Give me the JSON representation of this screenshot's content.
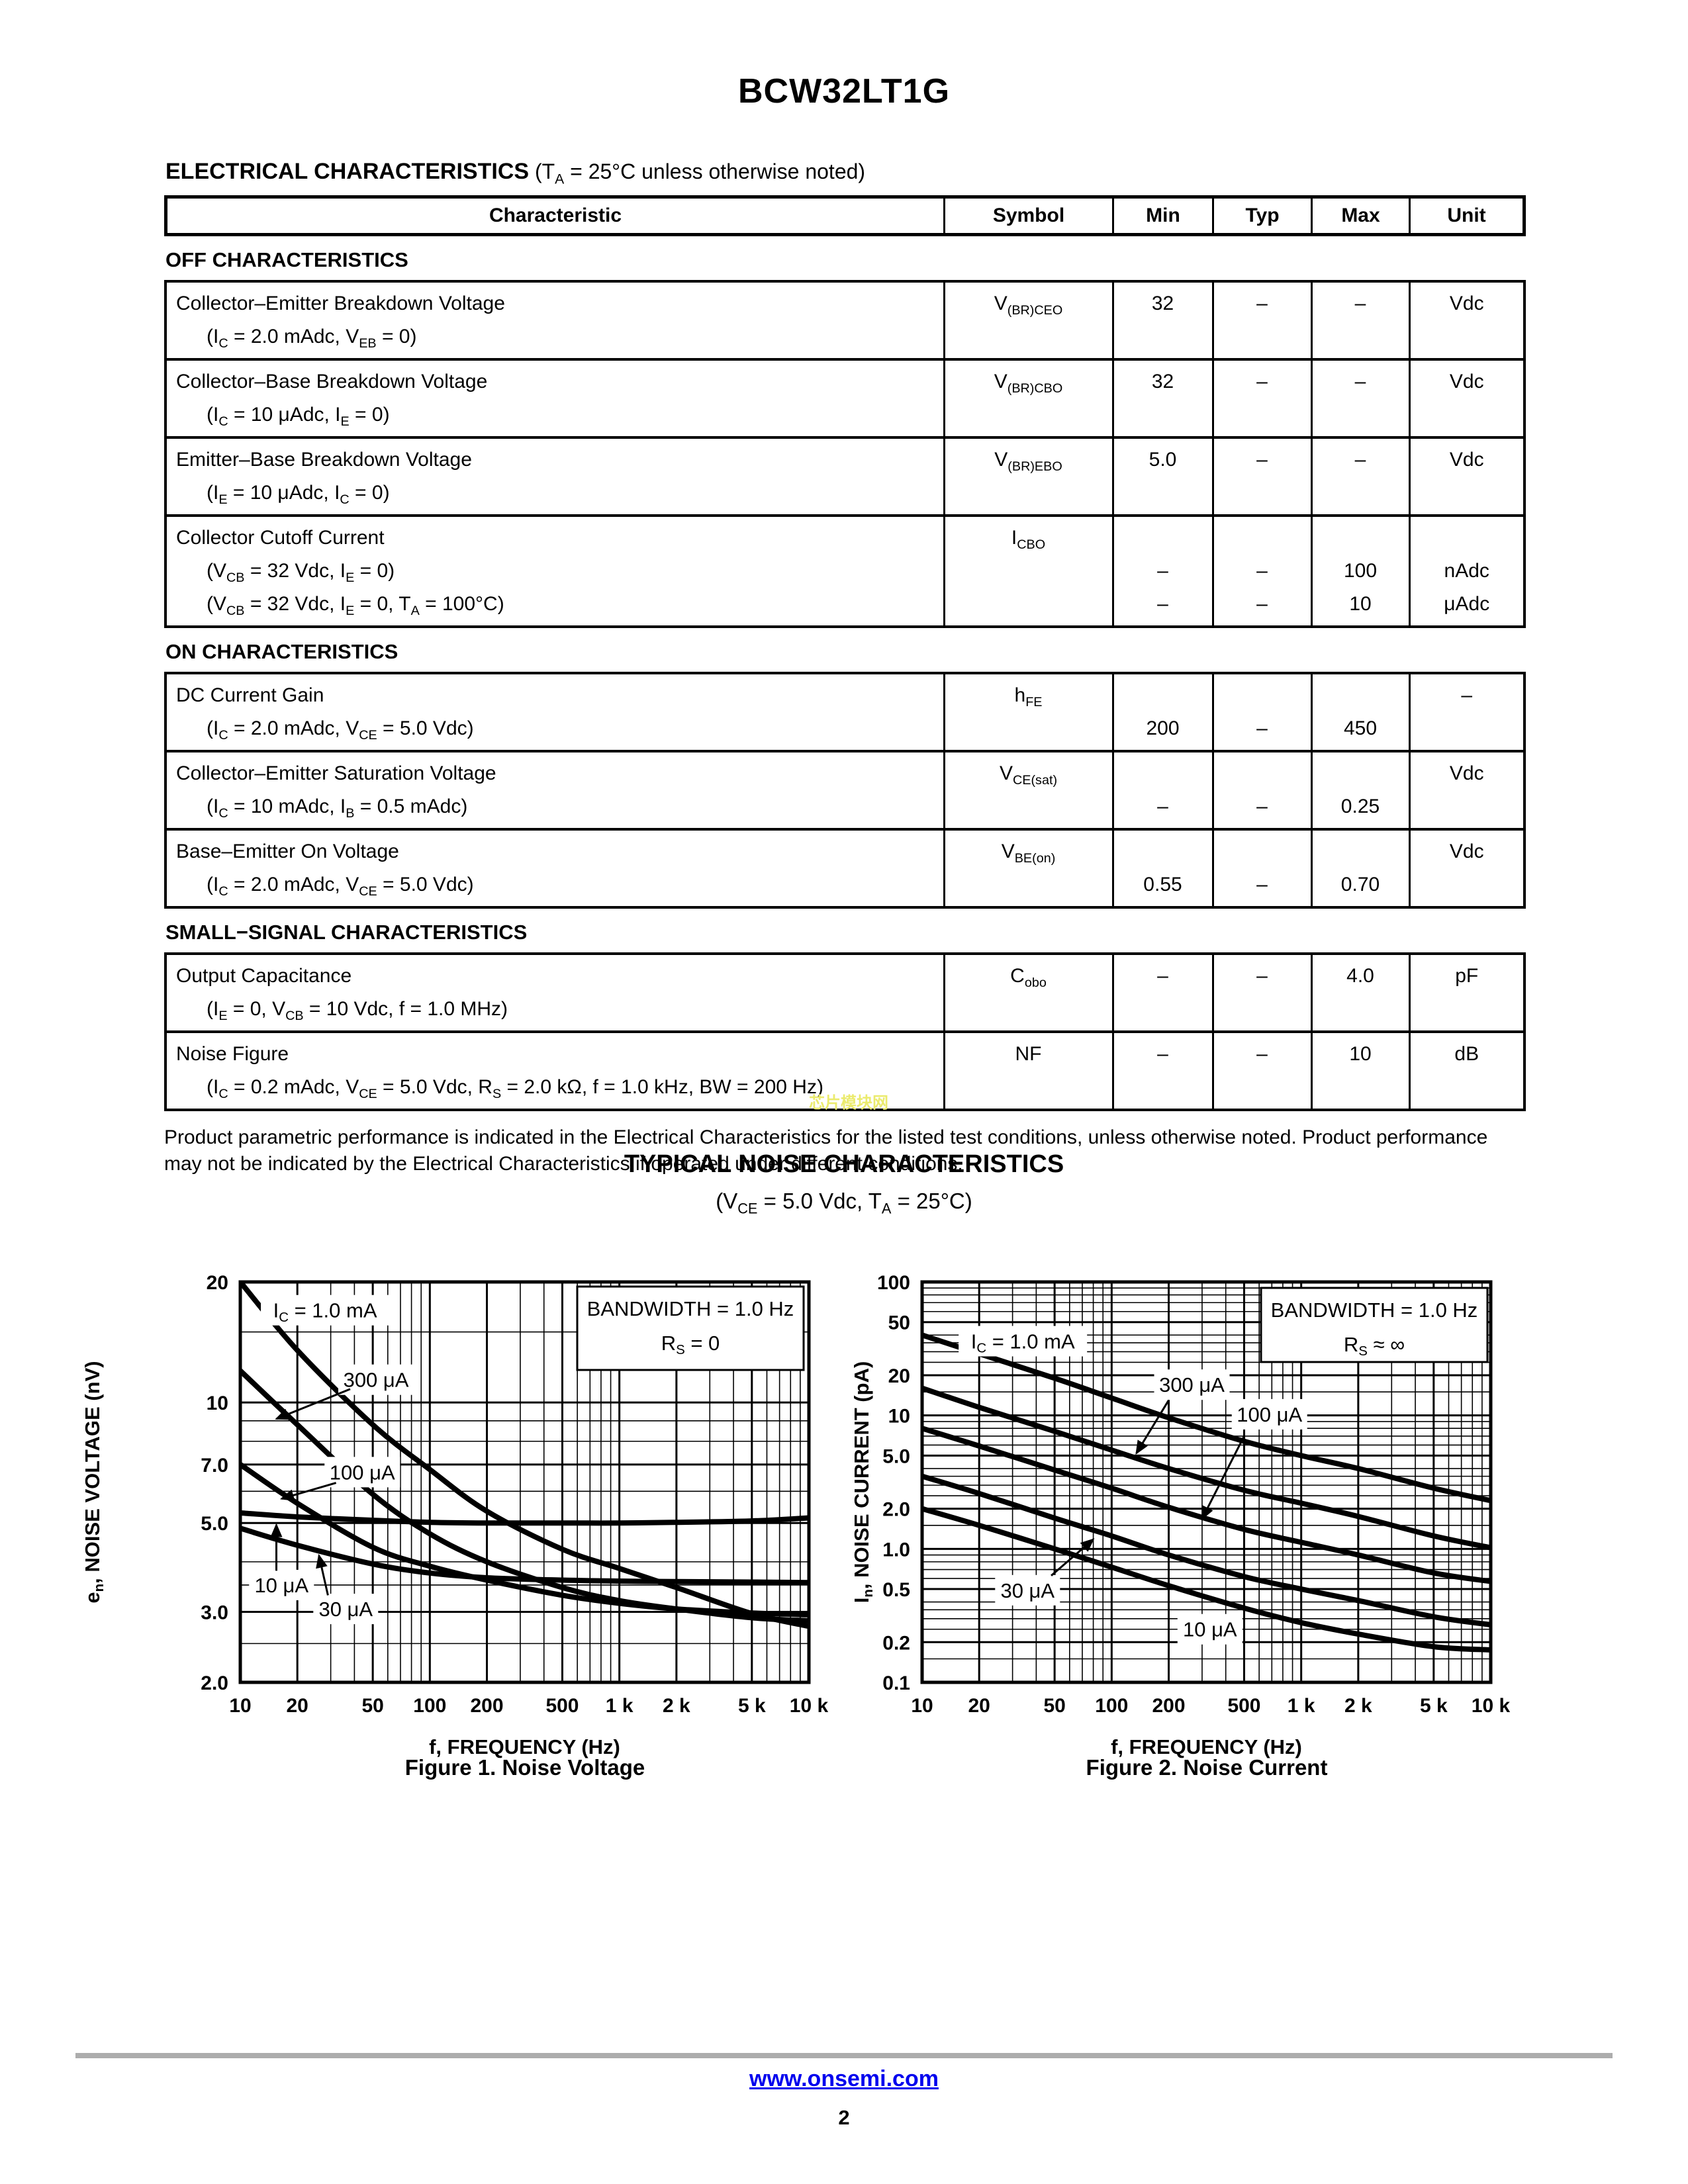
{
  "page": {
    "title": "BCW32LT1G",
    "watermark": "芯片模块网",
    "footer_link": "www.onsemi.com",
    "footer_page": "2"
  },
  "colors": {
    "text": "#000000",
    "link_blue": "#0000ee",
    "footer_bar_gray": "#adadad",
    "watermark_yellow": "#ebeb6e",
    "curve_black": "#000000"
  },
  "electrical": {
    "heading_bold": "ELECTRICAL CHARACTERISTICS",
    "heading_note": " (T{A} = 25°C unless otherwise noted)",
    "columns": [
      "Characteristic",
      "Symbol",
      "Min",
      "Typ",
      "Max",
      "Unit"
    ],
    "sections": [
      {
        "name": "OFF CHARACTERISTICS",
        "rows": [
          {
            "char": [
              "Collector–Emitter Breakdown Voltage",
              "(I{C} = 2.0 mAdc, V{EB} = 0)"
            ],
            "symbol": "V{(BR)CEO}",
            "min": [
              "32"
            ],
            "typ": [
              "–"
            ],
            "max": [
              "–"
            ],
            "unit": [
              "Vdc"
            ]
          },
          {
            "char": [
              "Collector–Base Breakdown Voltage",
              "(I{C} = 10 μAdc, I{E} = 0)"
            ],
            "symbol": "V{(BR)CBO}",
            "min": [
              "32"
            ],
            "typ": [
              "–"
            ],
            "max": [
              "–"
            ],
            "unit": [
              "Vdc"
            ]
          },
          {
            "char": [
              "Emitter–Base Breakdown Voltage",
              "(I{E} = 10 μAdc, I{C} = 0)"
            ],
            "symbol": "V{(BR)EBO}",
            "min": [
              "5.0"
            ],
            "typ": [
              "–"
            ],
            "max": [
              "–"
            ],
            "unit": [
              "Vdc"
            ]
          },
          {
            "char": [
              "Collector Cutoff Current",
              "(V{CB} = 32 Vdc, I{E} = 0)",
              "(V{CB} = 32 Vdc, I{E} = 0, T{A} = 100°C)"
            ],
            "symbol": "I{CBO}",
            "min": [
              "",
              "–",
              "–"
            ],
            "typ": [
              "",
              "–",
              "–"
            ],
            "max": [
              "",
              "100",
              "10"
            ],
            "unit": [
              "",
              "nAdc",
              "μAdc"
            ]
          }
        ]
      },
      {
        "name": "ON CHARACTERISTICS",
        "rows": [
          {
            "char": [
              "DC Current Gain",
              "(I{C} = 2.0 mAdc, V{CE} = 5.0 Vdc)"
            ],
            "symbol": "h{FE}",
            "min": [
              "",
              "200"
            ],
            "typ": [
              "",
              "–"
            ],
            "max": [
              "",
              "450"
            ],
            "unit": [
              "–"
            ]
          },
          {
            "char": [
              "Collector–Emitter Saturation Voltage",
              "(I{C} = 10 mAdc, I{B} = 0.5 mAdc)"
            ],
            "symbol": "V{CE(sat)}",
            "min": [
              "",
              "–"
            ],
            "typ": [
              "",
              "–"
            ],
            "max": [
              "",
              "0.25"
            ],
            "unit": [
              "Vdc"
            ]
          },
          {
            "char": [
              "Base–Emitter On Voltage",
              "(I{C} = 2.0 mAdc, V{CE} = 5.0 Vdc)"
            ],
            "symbol": "V{BE(on)}",
            "min": [
              "",
              "0.55"
            ],
            "typ": [
              "",
              "–"
            ],
            "max": [
              "",
              "0.70"
            ],
            "unit": [
              "Vdc"
            ]
          }
        ]
      },
      {
        "name": "SMALL−SIGNAL CHARACTERISTICS",
        "rows": [
          {
            "char": [
              "Output Capacitance",
              "(I{E} = 0, V{CB} = 10 Vdc, f = 1.0 MHz)"
            ],
            "symbol": "C{obo}",
            "min": [
              "–"
            ],
            "typ": [
              "–"
            ],
            "max": [
              "4.0"
            ],
            "unit": [
              "pF"
            ]
          },
          {
            "char": [
              "Noise Figure",
              "(I{C} = 0.2 mAdc, V{CE} = 5.0 Vdc, R{S} = 2.0 kΩ, f = 1.0 kHz, BW = 200 Hz)"
            ],
            "symbol": "NF",
            "min": [
              "–"
            ],
            "typ": [
              "–"
            ],
            "max": [
              "10"
            ],
            "unit": [
              "dB"
            ]
          }
        ]
      }
    ],
    "note": "Product parametric performance is indicated in the Electrical Characteristics for the listed test conditions, unless otherwise noted. Product performance may not be indicated by the Electrical Characteristics if operated under different conditions."
  },
  "noise": {
    "title": "TYPICAL NOISE CHARACTERISTICS",
    "subtitle": "(V{CE} = 5.0 Vdc, T{A} = 25°C)"
  },
  "chart_data": [
    {
      "type": "line",
      "title": "Figure 1. Noise Voltage",
      "xlabel": "f, FREQUENCY (Hz)",
      "ylabel": "e{n}, NOISE VOLTAGE (nV)",
      "x_scale": "log",
      "y_scale": "log",
      "grid": true,
      "xlim": [
        10,
        10000
      ],
      "ylim": [
        2,
        20
      ],
      "x_ticks": [
        {
          "v": 10,
          "label": "10"
        },
        {
          "v": 20,
          "label": "20"
        },
        {
          "v": 50,
          "label": "50"
        },
        {
          "v": 100,
          "label": "100"
        },
        {
          "v": 200,
          "label": "200"
        },
        {
          "v": 500,
          "label": "500"
        },
        {
          "v": 1000,
          "label": "1 k"
        },
        {
          "v": 2000,
          "label": "2 k"
        },
        {
          "v": 5000,
          "label": "5 k"
        },
        {
          "v": 10000,
          "label": "10 k"
        }
      ],
      "y_ticks": [
        {
          "v": 20,
          "label": "20"
        },
        {
          "v": 10,
          "label": "10"
        },
        {
          "v": 7,
          "label": "7.0"
        },
        {
          "v": 5,
          "label": "5.0"
        },
        {
          "v": 3,
          "label": "3.0"
        },
        {
          "v": 2,
          "label": "2.0"
        }
      ],
      "x_minor_per_decade": [
        1,
        2,
        3,
        4,
        5,
        6,
        7,
        8,
        9
      ],
      "y_minor": [
        2,
        2.5,
        3,
        3.5,
        4,
        5,
        6,
        7,
        8,
        9,
        10,
        15,
        20
      ],
      "note_box": [
        "BANDWIDTH = 1.0 Hz",
        "R{S} = 0"
      ],
      "x": [
        10,
        20,
        50,
        100,
        200,
        500,
        1000,
        2000,
        5000,
        10000
      ],
      "series": [
        {
          "name": "IC = 1.0 mA",
          "values": [
            20,
            13.5,
            8.8,
            6.8,
            5.35,
            4.3,
            3.85,
            3.45,
            2.97,
            2.76
          ]
        },
        {
          "name": "300 uA",
          "values": [
            12,
            8.8,
            5.9,
            4.7,
            4.0,
            3.45,
            3.2,
            3.05,
            2.9,
            2.85
          ]
        },
        {
          "name": "100 uA",
          "values": [
            7.0,
            5.6,
            4.35,
            3.9,
            3.6,
            3.3,
            3.15,
            3.05,
            2.98,
            2.95
          ]
        },
        {
          "name": "30 uA",
          "values": [
            4.85,
            4.4,
            3.95,
            3.75,
            3.65,
            3.6,
            3.58,
            3.57,
            3.56,
            3.55
          ]
        },
        {
          "name": "10 uA",
          "values": [
            5.3,
            5.18,
            5.08,
            5.02,
            5.0,
            5.0,
            5.0,
            5.02,
            5.06,
            5.15
          ]
        }
      ],
      "labels": [
        {
          "text": "I{C} = 1.0 mA",
          "x": 28,
          "y": 17
        },
        {
          "text": "300 μA",
          "x": 52,
          "y": 11.4,
          "ax": 38,
          "ay": 10.8,
          "tx": 15.5,
          "ty": 9.1
        },
        {
          "text": "100 μA",
          "x": 44,
          "y": 6.7,
          "ax": 32,
          "ay": 6.3,
          "tx": 16.5,
          "ty": 5.75
        },
        {
          "text": "10 μA",
          "x": 16.5,
          "y": 3.5,
          "ax": 15.5,
          "ay": 3.8,
          "tx": 15.5,
          "ty": 4.95
        },
        {
          "text": "30 μA",
          "x": 36,
          "y": 3.05,
          "ax": 29,
          "ay": 3.3,
          "tx": 26,
          "ty": 4.15
        }
      ]
    },
    {
      "type": "line",
      "title": "Figure 2. Noise Current",
      "xlabel": "f, FREQUENCY (Hz)",
      "ylabel": "I{n}, NOISE CURRENT (pA)",
      "x_scale": "log",
      "y_scale": "log",
      "grid": true,
      "xlim": [
        10,
        10000
      ],
      "ylim": [
        0.1,
        100
      ],
      "x_ticks": [
        {
          "v": 10,
          "label": "10"
        },
        {
          "v": 20,
          "label": "20"
        },
        {
          "v": 50,
          "label": "50"
        },
        {
          "v": 100,
          "label": "100"
        },
        {
          "v": 200,
          "label": "200"
        },
        {
          "v": 500,
          "label": "500"
        },
        {
          "v": 1000,
          "label": "1 k"
        },
        {
          "v": 2000,
          "label": "2 k"
        },
        {
          "v": 5000,
          "label": "5 k"
        },
        {
          "v": 10000,
          "label": "10 k"
        }
      ],
      "y_ticks": [
        {
          "v": 100,
          "label": "100"
        },
        {
          "v": 50,
          "label": "50"
        },
        {
          "v": 20,
          "label": "20"
        },
        {
          "v": 10,
          "label": "10"
        },
        {
          "v": 5,
          "label": "5.0"
        },
        {
          "v": 2,
          "label": "2.0"
        },
        {
          "v": 1,
          "label": "1.0"
        },
        {
          "v": 0.5,
          "label": "0.5"
        },
        {
          "v": 0.2,
          "label": "0.2"
        },
        {
          "v": 0.1,
          "label": "0.1"
        }
      ],
      "x_minor_per_decade": [
        1,
        2,
        3,
        4,
        5,
        6,
        7,
        8,
        9
      ],
      "y_minor_per_decade": [
        1,
        1.5,
        2,
        2.5,
        3,
        3.5,
        4,
        5,
        6,
        7,
        8,
        9
      ],
      "note_box": [
        "BANDWIDTH = 1.0 Hz",
        "R{S} ≈ ∞"
      ],
      "x": [
        10,
        20,
        50,
        100,
        200,
        500,
        1000,
        2000,
        5000,
        10000
      ],
      "series": [
        {
          "name": "IC = 1.0 mA",
          "values": [
            40,
            29,
            19,
            13.5,
            9.6,
            6.4,
            5.0,
            4.0,
            2.85,
            2.3
          ]
        },
        {
          "name": "300 uA",
          "values": [
            16,
            11.5,
            7.6,
            5.5,
            4.0,
            2.75,
            2.2,
            1.75,
            1.25,
            1.02
          ]
        },
        {
          "name": "100 uA",
          "values": [
            8,
            5.9,
            3.9,
            2.85,
            2.05,
            1.4,
            1.12,
            0.9,
            0.66,
            0.57
          ]
        },
        {
          "name": "30 uA",
          "values": [
            3.5,
            2.6,
            1.7,
            1.25,
            0.9,
            0.62,
            0.5,
            0.41,
            0.31,
            0.27
          ]
        },
        {
          "name": "10 uA",
          "values": [
            2.0,
            1.5,
            1.0,
            0.73,
            0.53,
            0.36,
            0.28,
            0.23,
            0.185,
            0.175
          ]
        }
      ],
      "labels": [
        {
          "text": "I{C} = 1.0 mA",
          "x": 34,
          "y": 36
        },
        {
          "text": "300 μA",
          "x": 265,
          "y": 17,
          "ax": 200,
          "ay": 13,
          "tx": 135,
          "ty": 5.2
        },
        {
          "text": "100 μA",
          "x": 680,
          "y": 10.2,
          "ax": 500,
          "ay": 7,
          "tx": 300,
          "ty": 1.68
        },
        {
          "text": "30 μA",
          "x": 36,
          "y": 0.49,
          "ax": 48,
          "ay": 0.63,
          "tx": 80,
          "ty": 1.18
        },
        {
          "text": "10 μA",
          "x": 330,
          "y": 0.25
        }
      ]
    }
  ]
}
